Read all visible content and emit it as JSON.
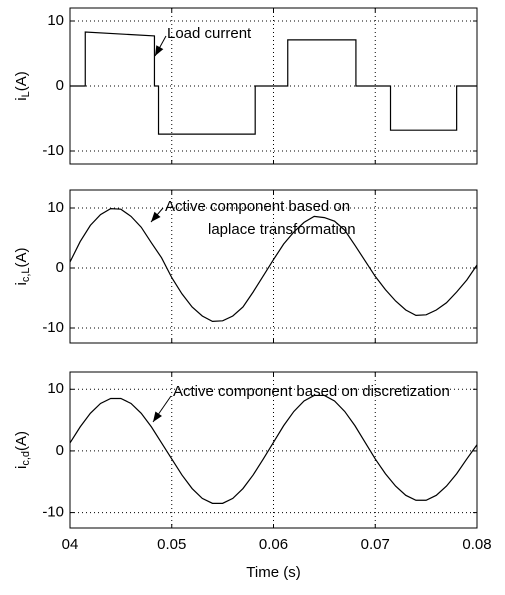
{
  "chart_data": [
    {
      "type": "line",
      "xlim": [
        0.04,
        0.08
      ],
      "ylim": [
        -12,
        12
      ],
      "yticks": [
        -10,
        0,
        10
      ],
      "grid": true,
      "ylabel": {
        "main": "i",
        "sub": "L",
        "unit": "(A)"
      },
      "annotations": [
        "Load current"
      ],
      "x": [
        0.04,
        0.0415,
        0.0415,
        0.0483,
        0.0483,
        0.0487,
        0.0487,
        0.0582,
        0.0582,
        0.0614,
        0.0614,
        0.0681,
        0.0681,
        0.0715,
        0.0715,
        0.078,
        0.078,
        0.08
      ],
      "series": [
        {
          "color": "#000000",
          "values": [
            0,
            0,
            8.3,
            7.7,
            0,
            0,
            -7.4,
            -7.4,
            0,
            0,
            7.1,
            7.1,
            0,
            0,
            -6.8,
            -6.8,
            0,
            0
          ]
        }
      ]
    },
    {
      "type": "line",
      "xlim": [
        0.04,
        0.08
      ],
      "ylim": [
        -12.5,
        13
      ],
      "yticks": [
        -10,
        0,
        10
      ],
      "grid": true,
      "ylabel": {
        "main": "i",
        "sub": "c,L",
        "unit": "(A)"
      },
      "annotations": [
        "Active component based on",
        "laplace transformation"
      ],
      "x": [
        0.04,
        0.041,
        0.042,
        0.043,
        0.044,
        0.045,
        0.046,
        0.047,
        0.048,
        0.049,
        0.05,
        0.051,
        0.052,
        0.053,
        0.054,
        0.055,
        0.056,
        0.057,
        0.058,
        0.059,
        0.06,
        0.061,
        0.062,
        0.063,
        0.064,
        0.065,
        0.066,
        0.067,
        0.068,
        0.069,
        0.07,
        0.071,
        0.072,
        0.073,
        0.074,
        0.075,
        0.076,
        0.077,
        0.078,
        0.079,
        0.08
      ],
      "series": [
        {
          "color": "#000000",
          "values": [
            1.0,
            4.4,
            7.1,
            8.9,
            9.9,
            9.8,
            8.6,
            6.8,
            4.2,
            1.7,
            -1.6,
            -4.3,
            -6.5,
            -8.0,
            -8.9,
            -8.8,
            -8.0,
            -6.5,
            -4.0,
            -1.3,
            1.4,
            4.0,
            6.0,
            7.6,
            8.6,
            8.4,
            7.8,
            6.3,
            3.8,
            1.2,
            -1.4,
            -3.6,
            -5.5,
            -7.0,
            -7.9,
            -7.8,
            -7.0,
            -5.8,
            -4.0,
            -2.0,
            0.5
          ]
        }
      ]
    },
    {
      "type": "line",
      "xlim": [
        0.04,
        0.08
      ],
      "ylim": [
        -12.5,
        12.8
      ],
      "yticks": [
        -10,
        0,
        10
      ],
      "grid": true,
      "xticks": [
        {
          "value": 0.04,
          "label": "04"
        },
        0.05,
        0.06,
        0.07,
        0.08
      ],
      "xlabel": "Time (s)",
      "ylabel": {
        "main": "i",
        "sub": "c,d",
        "unit": "(A)"
      },
      "annotations": [
        "Active component based on discretization"
      ],
      "x": [
        0.04,
        0.041,
        0.042,
        0.043,
        0.044,
        0.045,
        0.046,
        0.047,
        0.048,
        0.049,
        0.05,
        0.051,
        0.052,
        0.053,
        0.054,
        0.055,
        0.056,
        0.057,
        0.058,
        0.059,
        0.06,
        0.061,
        0.062,
        0.063,
        0.064,
        0.065,
        0.066,
        0.067,
        0.068,
        0.069,
        0.07,
        0.071,
        0.072,
        0.073,
        0.074,
        0.075,
        0.076,
        0.077,
        0.078,
        0.079,
        0.08
      ],
      "series": [
        {
          "color": "#000000",
          "values": [
            1.3,
            3.9,
            6.1,
            7.7,
            8.5,
            8.5,
            7.7,
            6.1,
            3.9,
            1.3,
            -1.3,
            -3.9,
            -6.1,
            -7.7,
            -8.5,
            -8.5,
            -7.7,
            -6.1,
            -3.9,
            -1.3,
            1.4,
            4.1,
            6.4,
            8.1,
            9.0,
            9.0,
            8.1,
            6.4,
            4.1,
            1.4,
            -1.3,
            -3.7,
            -5.7,
            -7.2,
            -8.0,
            -8.0,
            -7.2,
            -5.7,
            -3.7,
            -1.3,
            1.0
          ]
        }
      ]
    }
  ]
}
